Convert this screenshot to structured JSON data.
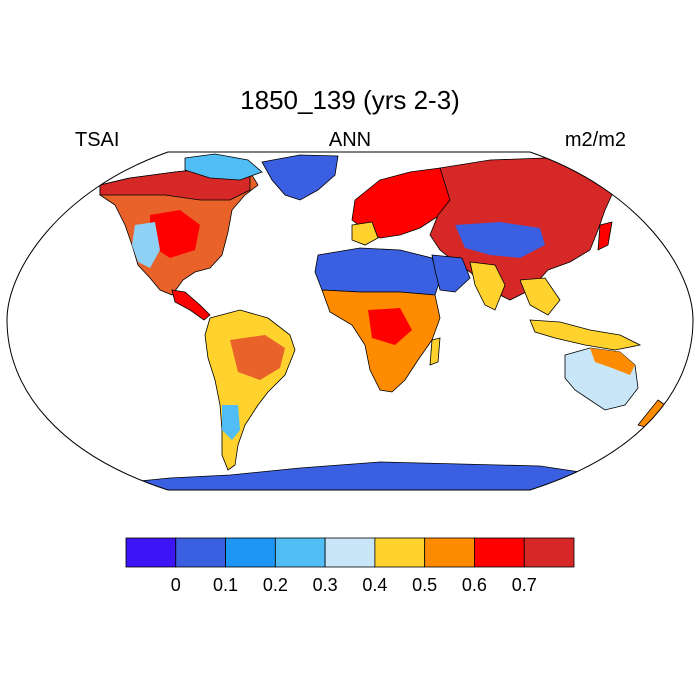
{
  "map": {
    "title": "1850_139 (yrs 2-3)",
    "left_label": "TSAI",
    "center_label": "ANN",
    "right_label": "m2/m2",
    "projection": "robinson",
    "colors": {
      "ocean": "#ffffff",
      "outline": "#000000"
    }
  },
  "colorbar": {
    "colors": [
      "#3c14f5",
      "#3a5fe0",
      "#1e96f5",
      "#50bef5",
      "#c8e6f8",
      "#ffd22d",
      "#ff8c00",
      "#ff0000",
      "#d72828"
    ],
    "ticks": [
      "0",
      "0.1",
      "0.2",
      "0.3",
      "0.4",
      "0.5",
      "0.6",
      "0.7"
    ]
  }
}
